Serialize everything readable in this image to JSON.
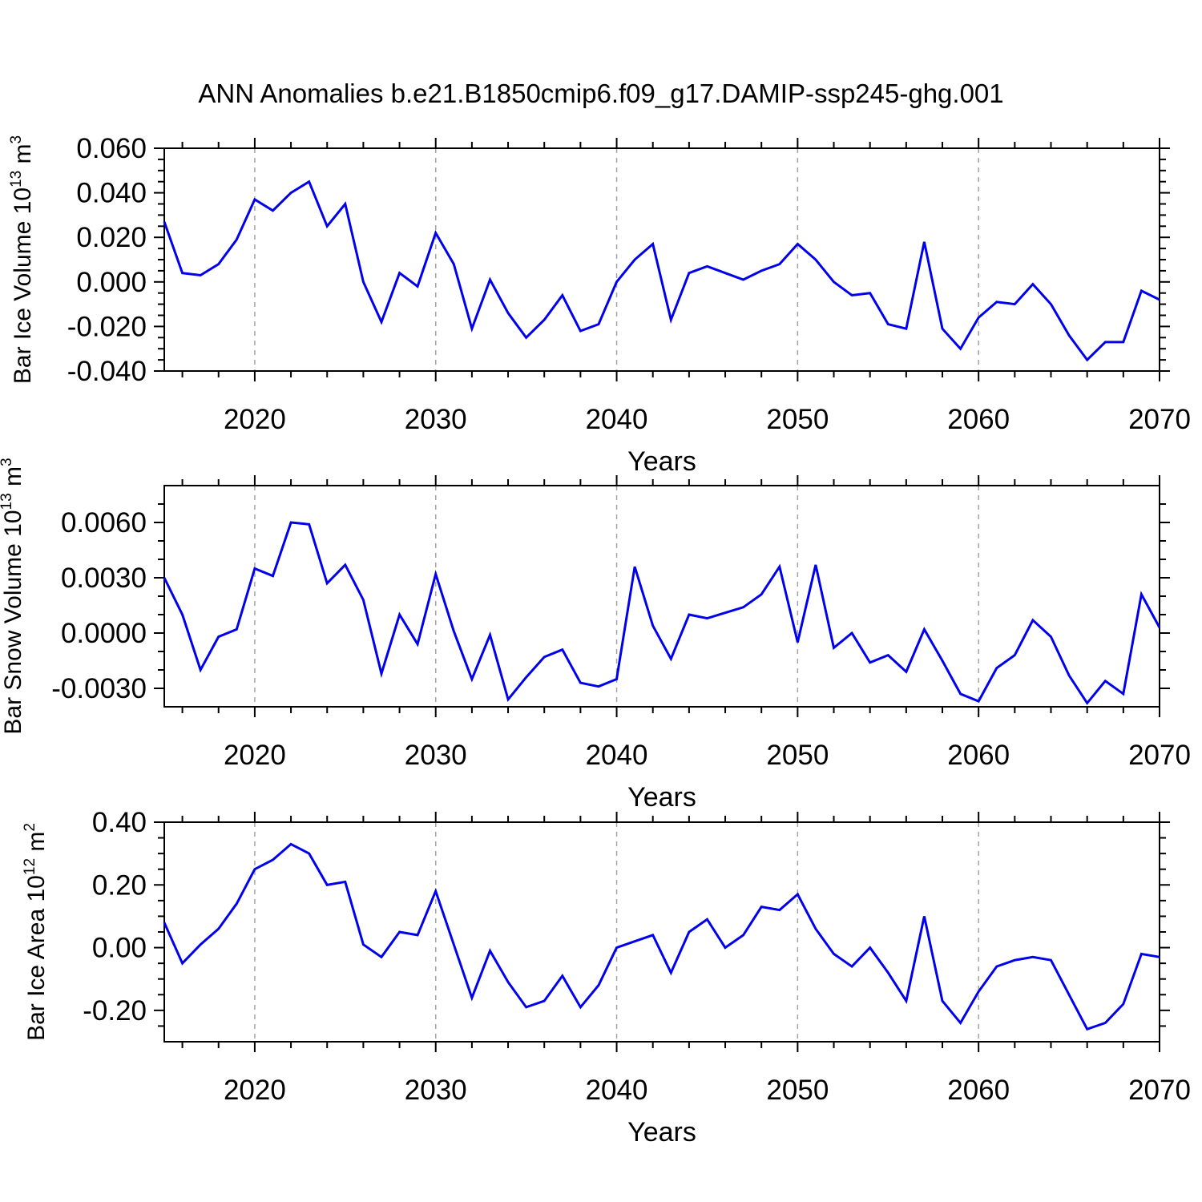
{
  "chart_data": {
    "type": "line",
    "title": "ANN Anomalies b.e21.B1850cmip6.f09_g17.DAMIP-ssp245-ghg.001",
    "xlabel": "Years",
    "xlim": [
      2015,
      2070
    ],
    "x": [
      2015,
      2016,
      2017,
      2018,
      2019,
      2020,
      2021,
      2022,
      2023,
      2024,
      2025,
      2026,
      2027,
      2028,
      2029,
      2030,
      2031,
      2032,
      2033,
      2034,
      2035,
      2036,
      2037,
      2038,
      2039,
      2040,
      2041,
      2042,
      2043,
      2044,
      2045,
      2046,
      2047,
      2048,
      2049,
      2050,
      2051,
      2052,
      2053,
      2054,
      2055,
      2056,
      2057,
      2058,
      2059,
      2060,
      2061,
      2062,
      2063,
      2064,
      2065,
      2066,
      2067,
      2068,
      2069,
      2070
    ],
    "xticks_major": [
      2020,
      2030,
      2040,
      2050,
      2060,
      2070
    ],
    "xtick_labels": [
      "2020",
      "2030",
      "2040",
      "2050",
      "2060",
      "2070"
    ],
    "x_minor_step": 2,
    "grid_years": [
      2020,
      2030,
      2040,
      2050,
      2060
    ],
    "line_color": "#0000ee",
    "grid_color": "#a3a3a3",
    "frame_color": "#000000",
    "legend": "none",
    "grid": "vertical-dashed-at-decades",
    "panels": [
      {
        "name": "bar-ice-volume",
        "ylabel_parts": [
          {
            "text": "Bar Ice Volume 10",
            "sup": false
          },
          {
            "text": "13",
            "sup": true
          },
          {
            "text": " m",
            "sup": false
          },
          {
            "text": "3",
            "sup": true
          }
        ],
        "ylim": [
          -0.04,
          0.06
        ],
        "yticks": [
          0.06,
          0.04,
          0.02,
          0.0,
          -0.02,
          -0.04
        ],
        "ytick_labels": [
          "0.060",
          "0.040",
          "0.020",
          "0.000",
          "-0.020",
          "-0.040"
        ],
        "y_minor_step": 0.005,
        "values": [
          0.027,
          0.004,
          0.003,
          0.008,
          0.019,
          0.037,
          0.032,
          0.04,
          0.045,
          0.025,
          0.035,
          0.0,
          -0.018,
          0.004,
          -0.002,
          0.022,
          0.008,
          -0.021,
          0.001,
          -0.014,
          -0.025,
          -0.017,
          -0.006,
          -0.022,
          -0.019,
          0.0,
          0.01,
          0.017,
          -0.017,
          0.004,
          0.007,
          0.004,
          0.001,
          0.005,
          0.008,
          0.017,
          0.01,
          0.0,
          -0.006,
          -0.005,
          -0.019,
          -0.021,
          0.018,
          -0.021,
          -0.03,
          -0.016,
          -0.009,
          -0.01,
          -0.001,
          -0.01,
          -0.024,
          -0.035,
          -0.027,
          -0.027,
          -0.004,
          -0.008
        ]
      },
      {
        "name": "bar-snow-volume",
        "ylabel_parts": [
          {
            "text": "Bar Snow Volume 10",
            "sup": false
          },
          {
            "text": "13",
            "sup": true
          },
          {
            "text": " m",
            "sup": false
          },
          {
            "text": "3",
            "sup": true
          }
        ],
        "ylim": [
          -0.004,
          0.008
        ],
        "yticks": [
          0.006,
          0.003,
          0.0,
          -0.003
        ],
        "ytick_labels": [
          "0.0060",
          "0.0030",
          "0.0000",
          "-0.0030"
        ],
        "y_minor_step": 0.001,
        "values": [
          0.003,
          0.001,
          -0.002,
          -0.0002,
          0.0002,
          0.0035,
          0.0031,
          0.006,
          0.0059,
          0.0027,
          0.0037,
          0.0018,
          -0.0022,
          0.001,
          -0.0006,
          0.0032,
          0.0001,
          -0.0025,
          -0.0001,
          -0.0036,
          -0.0024,
          -0.0013,
          -0.0009,
          -0.0027,
          -0.0029,
          -0.0025,
          0.0036,
          0.0004,
          -0.0014,
          0.001,
          0.0008,
          0.0011,
          0.0014,
          0.0021,
          0.0036,
          -0.0005,
          0.0037,
          -0.0008,
          0.0,
          -0.0016,
          -0.0012,
          -0.0021,
          0.0002,
          -0.0015,
          -0.0033,
          -0.0037,
          -0.0019,
          -0.0012,
          0.0007,
          -0.0002,
          -0.0023,
          -0.0038,
          -0.0026,
          -0.0033,
          0.0021,
          0.0003
        ]
      },
      {
        "name": "bar-ice-area",
        "ylabel_parts": [
          {
            "text": "Bar Ice Area 10",
            "sup": false
          },
          {
            "text": "12",
            "sup": true
          },
          {
            "text": " m",
            "sup": false
          },
          {
            "text": "2",
            "sup": true
          }
        ],
        "ylim": [
          -0.3,
          0.4
        ],
        "yticks": [
          0.4,
          0.2,
          0.0,
          -0.2
        ],
        "ytick_labels": [
          "0.40",
          "0.20",
          "0.00",
          "-0.20"
        ],
        "y_minor_step": 0.05,
        "values": [
          0.08,
          -0.05,
          0.01,
          0.06,
          0.14,
          0.25,
          0.28,
          0.33,
          0.3,
          0.2,
          0.21,
          0.01,
          -0.03,
          0.05,
          0.04,
          0.18,
          0.01,
          -0.16,
          -0.01,
          -0.11,
          -0.19,
          -0.17,
          -0.09,
          -0.19,
          -0.12,
          0.0,
          0.02,
          0.04,
          -0.08,
          0.05,
          0.09,
          0.0,
          0.04,
          0.13,
          0.12,
          0.17,
          0.06,
          -0.02,
          -0.06,
          0.0,
          -0.08,
          -0.17,
          0.1,
          -0.17,
          -0.24,
          -0.14,
          -0.06,
          -0.04,
          -0.03,
          -0.04,
          -0.15,
          -0.26,
          -0.24,
          -0.18,
          -0.02,
          -0.03
        ]
      }
    ]
  }
}
